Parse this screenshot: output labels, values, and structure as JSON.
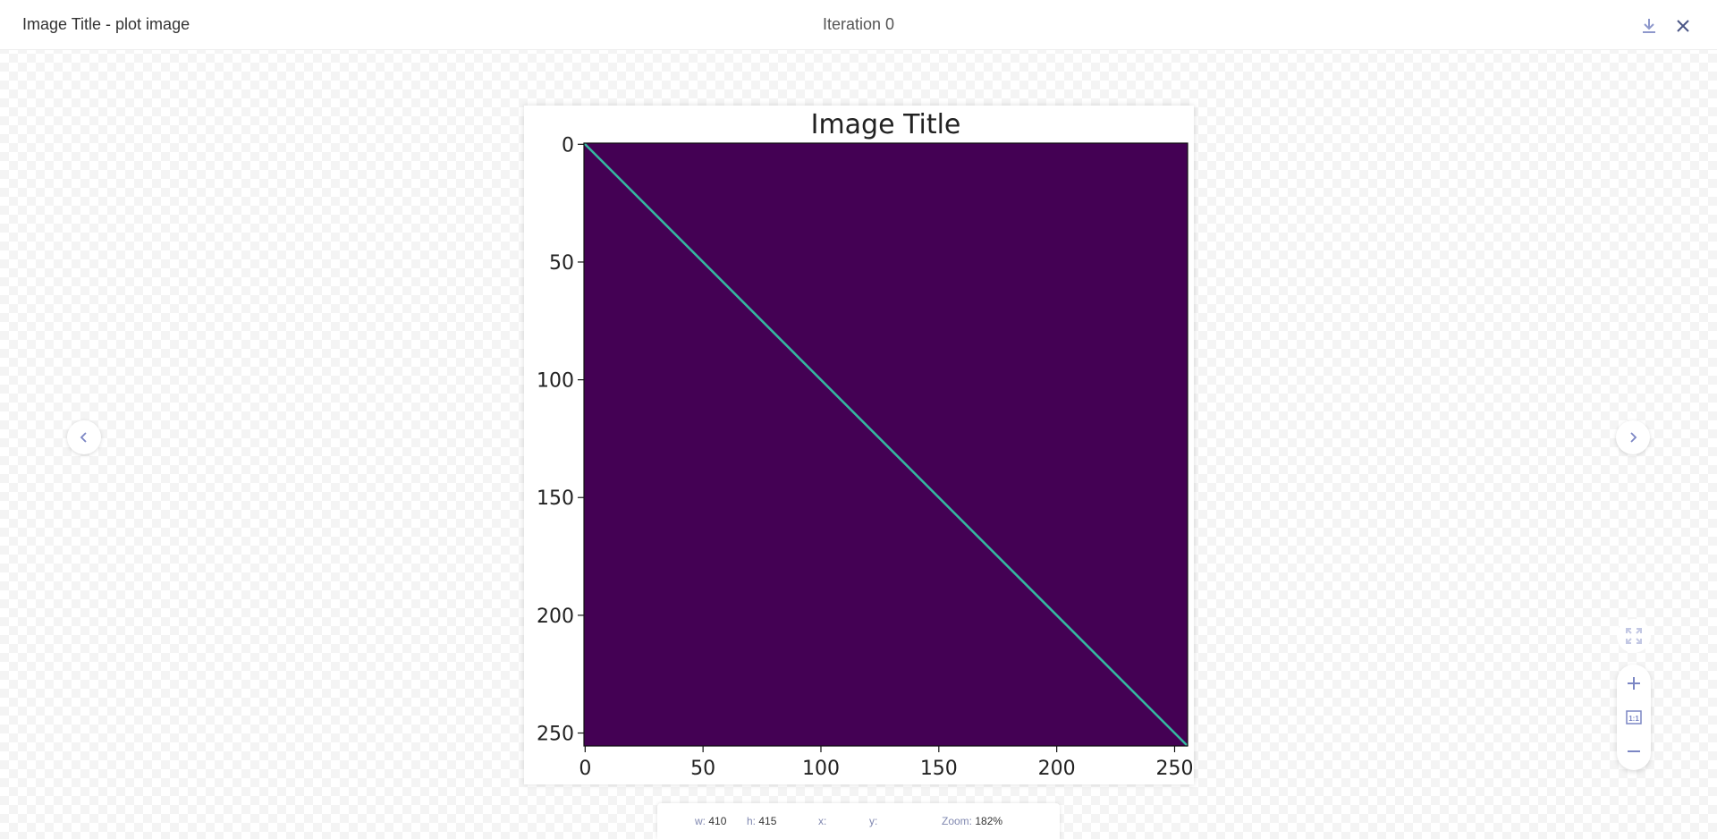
{
  "header": {
    "title": "Image Title - plot image",
    "iteration": "Iteration 0"
  },
  "status": {
    "w_label": "w:",
    "w": "410",
    "h_label": "h:",
    "h": "415",
    "x_label": "x:",
    "y_label": "y:",
    "zoom_label": "Zoom:",
    "zoom": "182%"
  },
  "icons": {
    "download": "download-icon",
    "close": "close-icon",
    "prev": "chevron-left-icon",
    "next": "chevron-right-icon",
    "fit": "fit-screen-icon",
    "zoom_in": "plus-icon",
    "actual": "one-to-one-icon",
    "zoom_out": "minus-icon"
  },
  "colors": {
    "accent": "#7b86c4",
    "background": "#440154",
    "diagonal": "#35b7a0"
  },
  "chart_data": {
    "type": "heatmap",
    "title": "Image Title",
    "description_of_values": "identity matrix",
    "size": [
      256,
      256
    ],
    "colormap": "viridis",
    "xlim": [
      0,
      256
    ],
    "ylim": [
      256,
      0
    ],
    "xticks": [
      0,
      50,
      100,
      150,
      200,
      250
    ],
    "yticks": [
      0,
      50,
      100,
      150,
      200,
      250
    ],
    "grid": false
  }
}
